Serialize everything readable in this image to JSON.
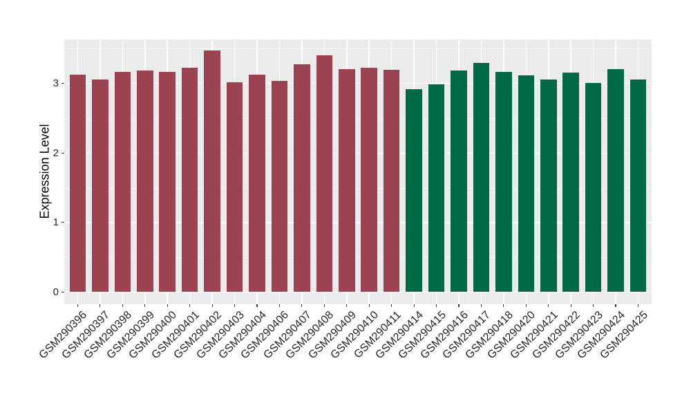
{
  "chart_data": {
    "type": "bar",
    "title": "",
    "xlabel": "",
    "ylabel": "Expression Level",
    "ylim": [
      0,
      3.8
    ],
    "yticks": [
      0,
      1,
      2,
      3
    ],
    "ytick_labels": [
      "0",
      "1",
      "2",
      "3"
    ],
    "grid": "on",
    "legend": "none",
    "panel_bg_color": "#EBEBEB",
    "grid_color": "#FFFFFF",
    "categories": [
      "GSM290396",
      "GSM290397",
      "GSM290398",
      "GSM290399",
      "GSM290400",
      "GSM290401",
      "GSM290402",
      "GSM290403",
      "GSM290404",
      "GSM290406",
      "GSM290407",
      "GSM290408",
      "GSM290409",
      "GSM290410",
      "GSM290411",
      "GSM290414",
      "GSM290415",
      "GSM290416",
      "GSM290417",
      "GSM290418",
      "GSM290420",
      "GSM290421",
      "GSM290422",
      "GSM290423",
      "GSM290424",
      "GSM290425"
    ],
    "values": [
      3.13,
      3.06,
      3.17,
      3.19,
      3.17,
      3.23,
      3.47,
      3.02,
      3.13,
      3.04,
      3.28,
      3.4,
      3.21,
      3.23,
      3.2,
      2.92,
      2.99,
      3.19,
      3.3,
      3.17,
      3.12,
      3.06,
      3.16,
      3.01,
      3.21,
      3.06
    ],
    "bar_groups": [
      "group1",
      "group1",
      "group1",
      "group1",
      "group1",
      "group1",
      "group1",
      "group1",
      "group1",
      "group1",
      "group1",
      "group1",
      "group1",
      "group1",
      "group1",
      "group2",
      "group2",
      "group2",
      "group2",
      "group2",
      "group2",
      "group2",
      "group2",
      "group2",
      "group2",
      "group2"
    ],
    "group_colors": {
      "group1": "#9B4351",
      "group2": "#016847"
    }
  }
}
